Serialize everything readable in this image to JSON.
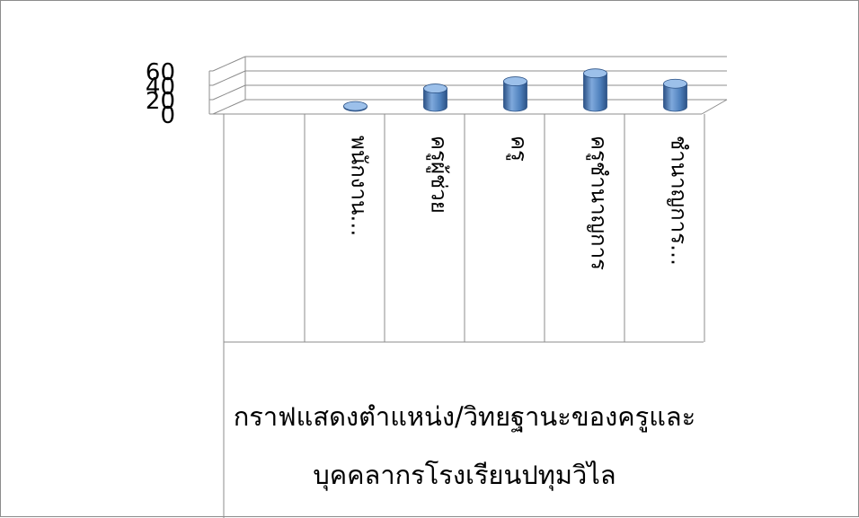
{
  "chart_data": {
    "type": "bar",
    "style": "3d-cylinder",
    "title_lines": [
      "กราฟแสดงตำแหน่ง/วิทยฐานะของครูและ",
      "บุคคลากรโรงเรียนปทุมวิไล"
    ],
    "categories": [
      "พนักงาน…",
      "ครูผู้ช่วย",
      "ครู",
      "ครูชำนาญการ",
      "ชำนาญการ…"
    ],
    "values": [
      1,
      23,
      32,
      42,
      29
    ],
    "yticks": [
      "0",
      "20",
      "40",
      "60"
    ],
    "ylim": [
      0,
      60
    ],
    "grid": true,
    "colors": {
      "bar": "#4f81bd",
      "bar_dark": "#2c5286",
      "bar_light": "#9cc0ea",
      "grid": "#8c8c8c"
    }
  }
}
